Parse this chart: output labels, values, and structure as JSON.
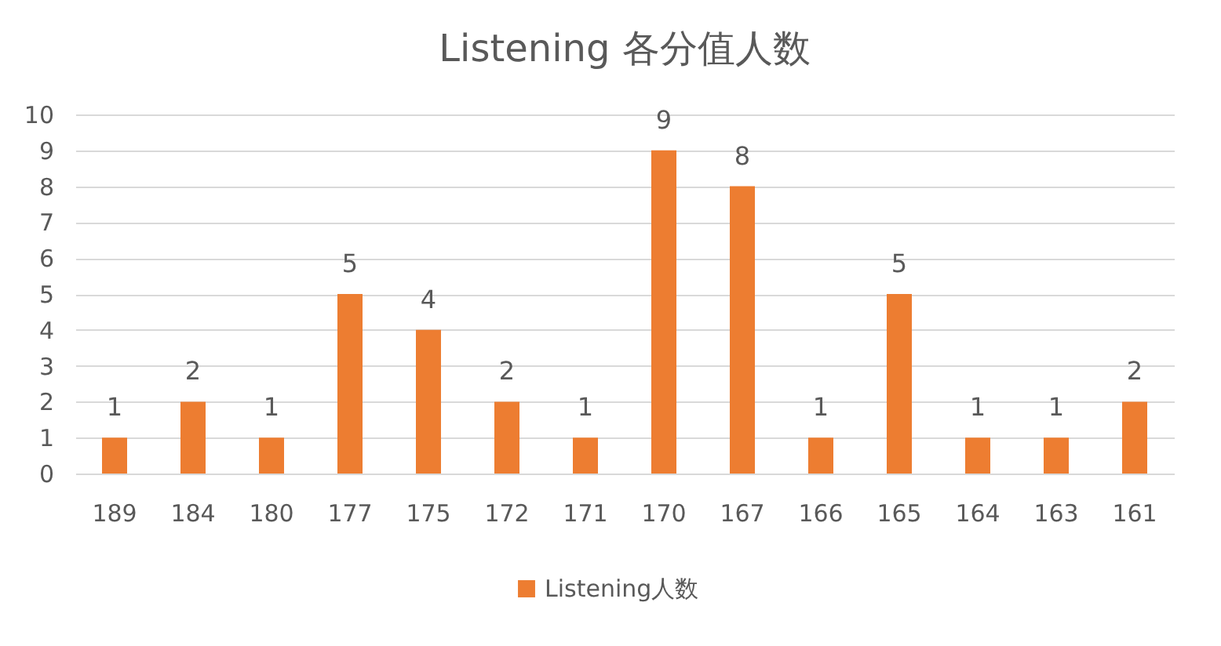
{
  "chart_data": {
    "type": "bar",
    "title": "Listening 各分值人数",
    "categories": [
      "189",
      "184",
      "180",
      "177",
      "175",
      "172",
      "171",
      "170",
      "167",
      "166",
      "165",
      "164",
      "163",
      "161"
    ],
    "series": [
      {
        "name": "Listening人数",
        "color": "#ed7d31",
        "values": [
          1,
          2,
          1,
          5,
          4,
          2,
          1,
          9,
          8,
          1,
          5,
          1,
          1,
          2
        ]
      }
    ],
    "ylim": [
      0,
      10
    ],
    "yticks": [
      0,
      1,
      2,
      3,
      4,
      5,
      6,
      7,
      8,
      9,
      10
    ],
    "grid": "y",
    "legend": "bottom",
    "data_labels": true
  }
}
